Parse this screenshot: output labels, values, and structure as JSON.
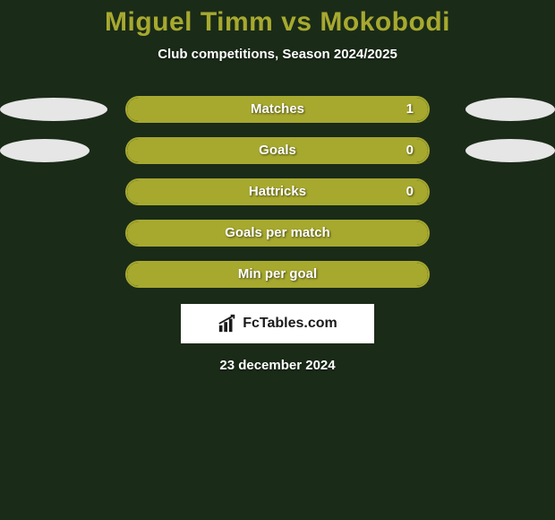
{
  "background_color": "#1a2b18",
  "title": {
    "text": "Miguel Timm vs Mokobodi",
    "color": "#a7a92f",
    "fontsize": 30
  },
  "subtitle": {
    "text": "Club competitions, Season 2024/2025",
    "color": "#ffffff",
    "fontsize": 15
  },
  "bar_style": {
    "wrap_border_color": "#a7a92f",
    "wrap_border_width": 2,
    "wrap_bg": "transparent",
    "fill_color": "#a7a92f",
    "height": 30,
    "radius": 15,
    "label_color": "#ffffff",
    "label_fontsize": 15
  },
  "ellipse_style": {
    "left_color": "#e6e6e6",
    "right_color": "#e6e6e6",
    "height": 26
  },
  "rows": [
    {
      "label": "Matches",
      "value": "1",
      "fill_pct": 100,
      "left_ellipse_w": 120,
      "right_ellipse_w": 100,
      "show_value": true
    },
    {
      "label": "Goals",
      "value": "0",
      "fill_pct": 100,
      "left_ellipse_w": 100,
      "right_ellipse_w": 100,
      "show_value": true
    },
    {
      "label": "Hattricks",
      "value": "0",
      "fill_pct": 100,
      "left_ellipse_w": 0,
      "right_ellipse_w": 0,
      "show_value": true
    },
    {
      "label": "Goals per match",
      "value": "",
      "fill_pct": 100,
      "left_ellipse_w": 0,
      "right_ellipse_w": 0,
      "show_value": false
    },
    {
      "label": "Min per goal",
      "value": "",
      "fill_pct": 100,
      "left_ellipse_w": 0,
      "right_ellipse_w": 0,
      "show_value": false
    }
  ],
  "brand": {
    "text": "FcTables.com",
    "bg": "#ffffff",
    "text_color": "#1a1a1a",
    "icon_color": "#1a1a1a"
  },
  "date": {
    "text": "23 december 2024",
    "color": "#ffffff"
  }
}
